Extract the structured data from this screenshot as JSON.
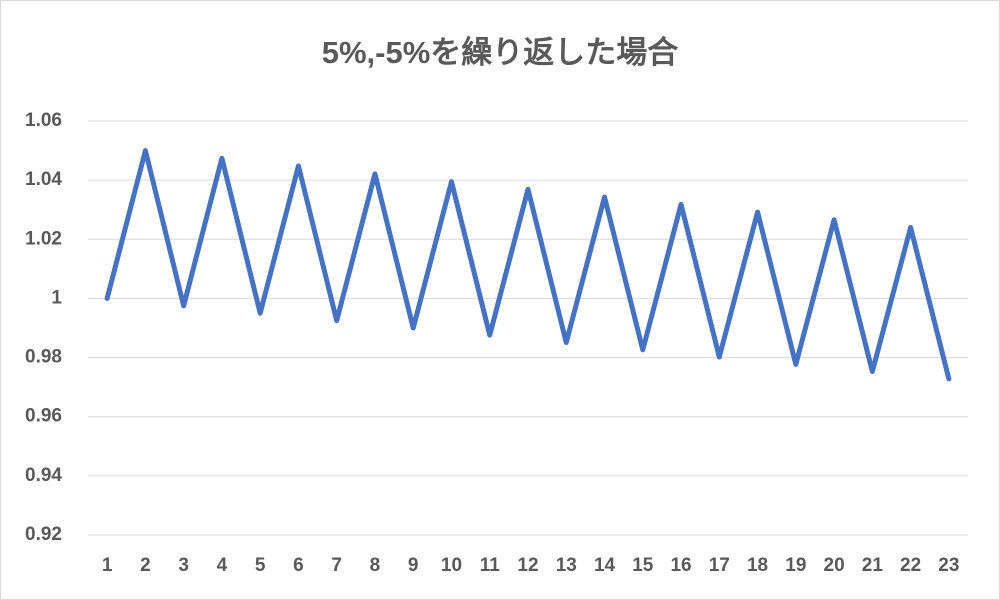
{
  "chart_data": {
    "type": "line",
    "title": "5%,-5%を繰り返した場合",
    "categories": [
      "1",
      "2",
      "3",
      "4",
      "5",
      "6",
      "7",
      "8",
      "9",
      "10",
      "11",
      "12",
      "13",
      "14",
      "15",
      "16",
      "17",
      "18",
      "19",
      "20",
      "21",
      "22",
      "23"
    ],
    "series": [
      {
        "color": "#4472c4",
        "values": [
          1,
          1.05,
          0.9975,
          1.0474,
          0.995,
          1.0448,
          0.9925,
          1.0421,
          0.99,
          1.0395,
          0.9876,
          1.0369,
          0.9851,
          1.0343,
          0.9826,
          1.0318,
          0.9802,
          1.0292,
          0.9777,
          1.0266,
          0.9753,
          1.024,
          0.9728
        ]
      }
    ],
    "ylim": [
      0.92,
      1.06
    ],
    "yticks": [
      0.92,
      0.94,
      0.96,
      0.98,
      1,
      1.02,
      1.04,
      1.06
    ],
    "grid": true
  }
}
